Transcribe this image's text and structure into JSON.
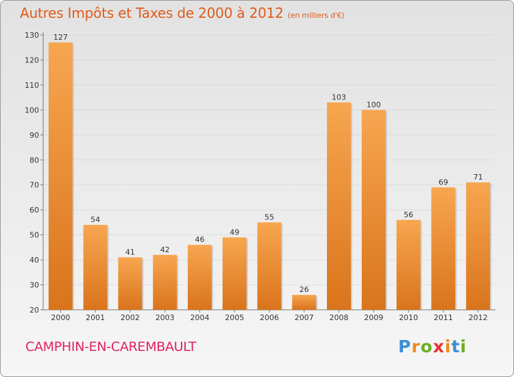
{
  "chart_data": {
    "type": "bar",
    "title": "Autres Impôts et Taxes de 2000 à 2012",
    "subtitle": "(en milliers d'€)",
    "categories": [
      "2000",
      "2001",
      "2002",
      "2003",
      "2004",
      "2005",
      "2006",
      "2007",
      "2008",
      "2009",
      "2010",
      "2011",
      "2012"
    ],
    "values": [
      127,
      54,
      41,
      42,
      46,
      49,
      55,
      26,
      103,
      100,
      56,
      69,
      71
    ],
    "ylim": [
      20,
      130
    ],
    "yticks": [
      20,
      30,
      40,
      50,
      60,
      70,
      80,
      90,
      100,
      110,
      120,
      130
    ],
    "xlabel": "",
    "ylabel": "",
    "grid": true,
    "bar_color": "#f0922e"
  },
  "commune": "CAMPHIN-EN-CAREMBAULT",
  "logo": {
    "letters": [
      "P",
      "r",
      "o",
      "x",
      "i",
      "t",
      "i"
    ],
    "colors": [
      "#3a8fd6",
      "#f08a1c",
      "#6ab023",
      "#e8312a",
      "#f08a1c",
      "#3a8fd6",
      "#6ab023"
    ]
  }
}
